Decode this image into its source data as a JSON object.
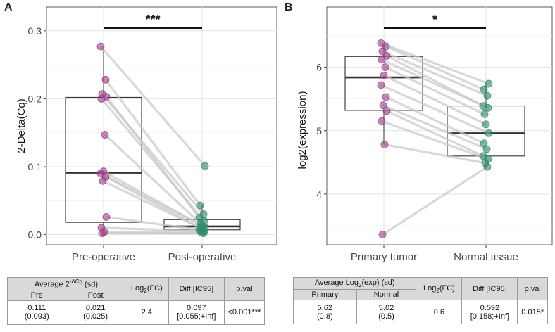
{
  "panels": [
    {
      "letter": "A",
      "ylabel": "2-Delta(Cq)",
      "categories": [
        "Pre-operative",
        "Post-operative"
      ],
      "yticks": [
        "0.0",
        "0.1",
        "0.2",
        "0.3"
      ],
      "significance": "***",
      "table": {
        "group_header_main": "Average 2",
        "group_header_sup": "-ΔCq",
        "group_header_tail": " (sd)",
        "col1": "Pre",
        "col2": "Post",
        "fc_main": "Log",
        "fc_sub": "2",
        "fc_tail": "(FC)",
        "diff_header": "Diff [IC95]",
        "pval_header": "p.val",
        "v1_mean": "0.111",
        "v1_sd": "(0.093)",
        "v2_mean": "0.021",
        "v2_sd": "(0.025)",
        "fc": "2.4",
        "diff": "0.097",
        "ci": "[0.055;+Inf]",
        "pval": "<0.001***"
      }
    },
    {
      "letter": "B",
      "ylabel": "log2(expression)",
      "categories": [
        "Primary tumor",
        "Normal tissue"
      ],
      "yticks": [
        "4",
        "5",
        "6"
      ],
      "significance": "*",
      "table": {
        "group_header_main": "Average Log",
        "group_header_sub": "2",
        "group_header_tail": "(exp) (sd)",
        "col1": "Primary",
        "col2": "Normal",
        "fc_main": "Log",
        "fc_sub": "2",
        "fc_tail": "(FC)",
        "diff_header": "Diff [IC95]",
        "pval_header": "p.val",
        "v1_mean": "5.62",
        "v1_sd": "(0.8)",
        "v2_mean": "5.02",
        "v2_sd": "(0.5)",
        "fc": "0.6",
        "diff": "0.592",
        "ci": "[0.158;+Inf]",
        "pval": "0.015*"
      }
    }
  ],
  "chart_data": [
    {
      "type": "box-paired",
      "ylabel": "2-Delta(Cq)",
      "categories": [
        "Pre-operative",
        "Post-operative"
      ],
      "ylim": [
        -0.015,
        0.335
      ],
      "yticks": [
        0.0,
        0.1,
        0.2,
        0.3
      ],
      "grid": true,
      "significance": "***",
      "colors": {
        "Pre-operative": "#9c3f86",
        "Post-operative": "#2f8a6a"
      },
      "boxes": [
        {
          "q1": 0.018,
          "median": 0.091,
          "q3": 0.202,
          "whisker_low": 0.002,
          "whisker_high": 0.277
        },
        {
          "q1": 0.007,
          "median": 0.012,
          "q3": 0.022,
          "whisker_low": 0.002,
          "whisker_high": 0.043
        }
      ],
      "pairs": [
        [
          0.277,
          0.101
        ],
        [
          0.228,
          0.043
        ],
        [
          0.207,
          0.03
        ],
        [
          0.203,
          0.025
        ],
        [
          0.2,
          0.02
        ],
        [
          0.147,
          0.016
        ],
        [
          0.093,
          0.013
        ],
        [
          0.09,
          0.011
        ],
        [
          0.085,
          0.01
        ],
        [
          0.079,
          0.008
        ],
        [
          0.026,
          0.007
        ],
        [
          0.01,
          0.005
        ],
        [
          0.004,
          0.003
        ],
        [
          0.002,
          0.002
        ]
      ]
    },
    {
      "type": "box-paired",
      "ylabel": "log2(expression)",
      "categories": [
        "Primary tumor",
        "Normal tissue"
      ],
      "ylim": [
        3.2,
        6.95
      ],
      "yticks": [
        4,
        5,
        6
      ],
      "grid": true,
      "significance": "*",
      "colors": {
        "Primary tumor": "#9c3f86",
        "Normal tissue": "#2f8a6a"
      },
      "boxes": [
        {
          "q1": 5.32,
          "median": 5.84,
          "q3": 6.17,
          "whisker_low": 4.78,
          "whisker_high": 6.38
        },
        {
          "q1": 4.6,
          "median": 4.96,
          "q3": 5.39,
          "whisker_low": 4.43,
          "whisker_high": 5.74
        }
      ],
      "pairs": [
        [
          6.38,
          5.74
        ],
        [
          6.33,
          5.65
        ],
        [
          6.25,
          5.55
        ],
        [
          6.18,
          5.39
        ],
        [
          6.12,
          5.36
        ],
        [
          6.0,
          5.26
        ],
        [
          5.87,
          5.1
        ],
        [
          5.72,
          4.96
        ],
        [
          5.53,
          4.8
        ],
        [
          5.4,
          4.71
        ],
        [
          5.31,
          4.6
        ],
        [
          5.15,
          4.55
        ],
        [
          4.78,
          4.49
        ],
        [
          3.36,
          4.43
        ]
      ]
    }
  ]
}
